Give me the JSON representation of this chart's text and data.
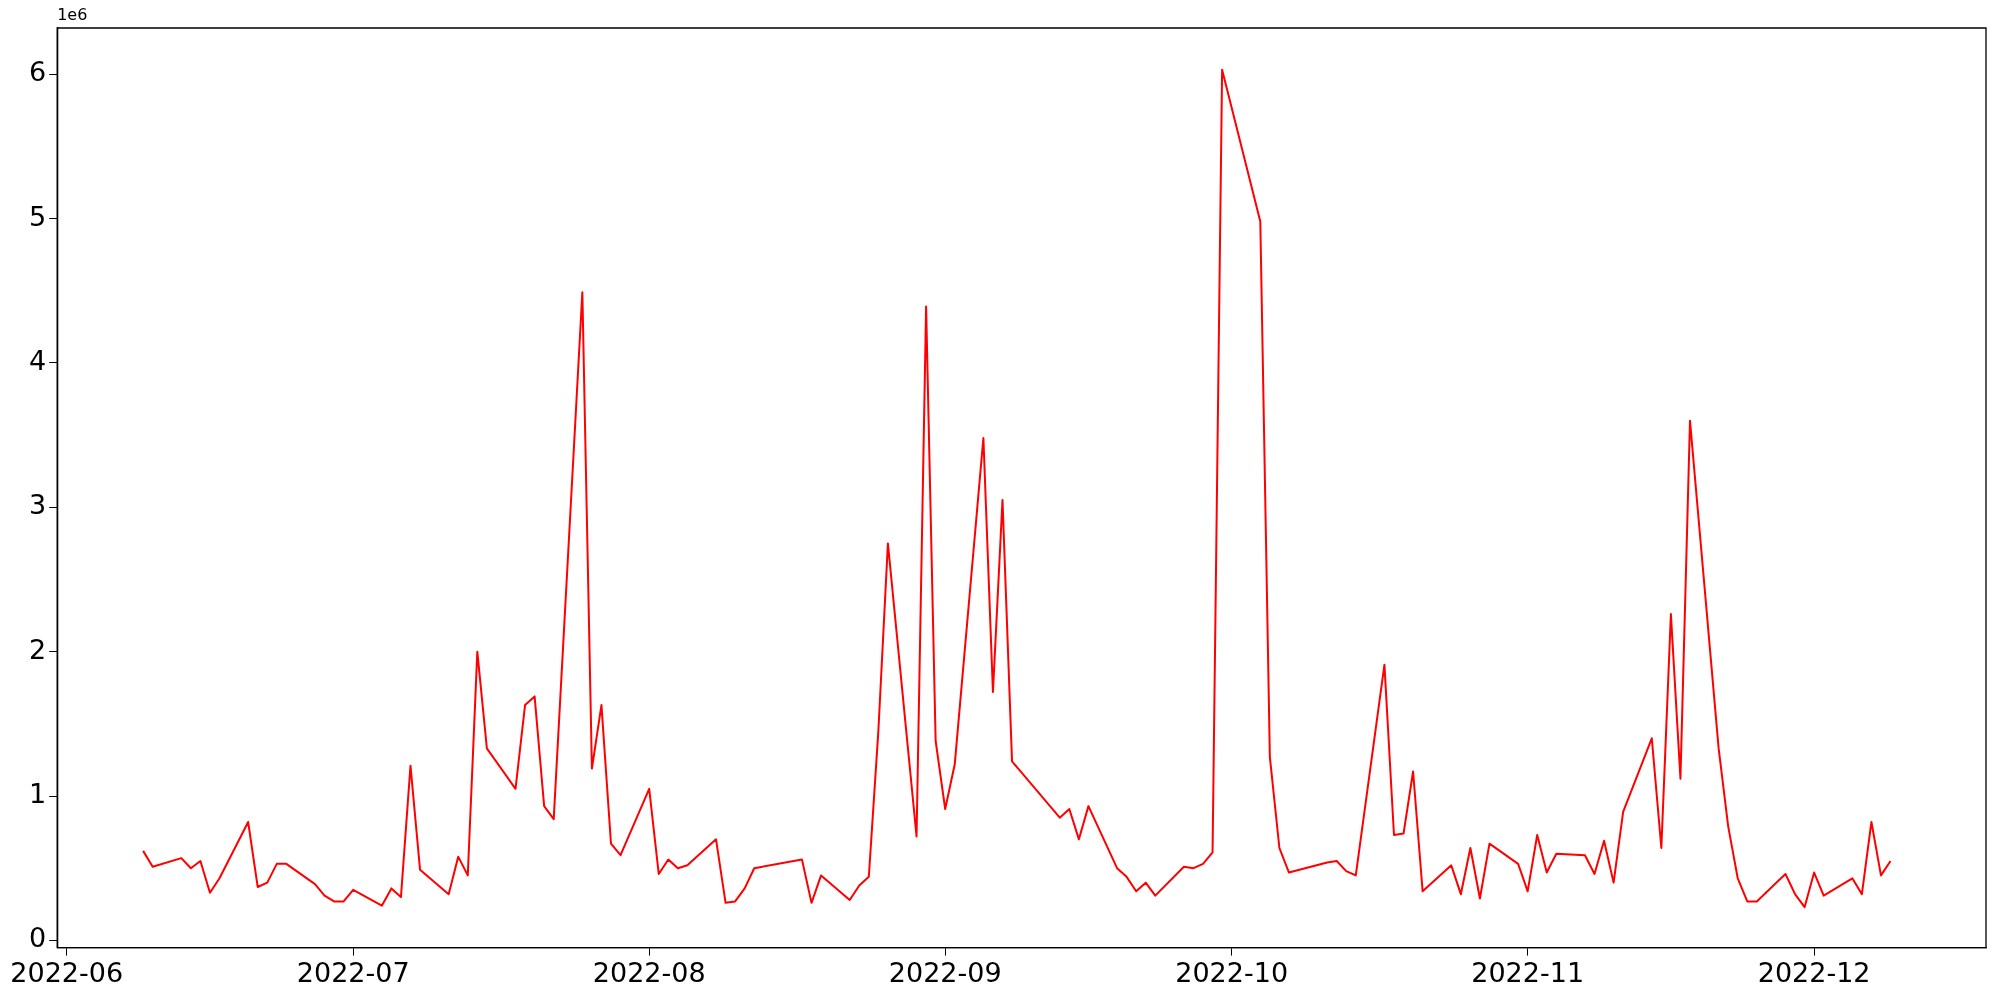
{
  "chart_data": {
    "type": "line",
    "x": [
      "2022-06-09",
      "2022-06-10",
      "2022-06-13",
      "2022-06-14",
      "2022-06-15",
      "2022-06-16",
      "2022-06-17",
      "2022-06-20",
      "2022-06-21",
      "2022-06-22",
      "2022-06-23",
      "2022-06-24",
      "2022-06-27",
      "2022-06-28",
      "2022-06-29",
      "2022-06-30",
      "2022-07-01",
      "2022-07-04",
      "2022-07-05",
      "2022-07-06",
      "2022-07-07",
      "2022-07-08",
      "2022-07-11",
      "2022-07-12",
      "2022-07-13",
      "2022-07-14",
      "2022-07-15",
      "2022-07-18",
      "2022-07-19",
      "2022-07-20",
      "2022-07-21",
      "2022-07-22",
      "2022-07-25",
      "2022-07-26",
      "2022-07-27",
      "2022-07-28",
      "2022-07-29",
      "2022-08-01",
      "2022-08-02",
      "2022-08-03",
      "2022-08-04",
      "2022-08-05",
      "2022-08-08",
      "2022-08-09",
      "2022-08-10",
      "2022-08-11",
      "2022-08-12",
      "2022-08-17",
      "2022-08-18",
      "2022-08-19",
      "2022-08-22",
      "2022-08-23",
      "2022-08-24",
      "2022-08-25",
      "2022-08-26",
      "2022-08-29",
      "2022-08-30",
      "2022-08-31",
      "2022-09-01",
      "2022-09-02",
      "2022-09-05",
      "2022-09-06",
      "2022-09-07",
      "2022-09-08",
      "2022-09-13",
      "2022-09-14",
      "2022-09-15",
      "2022-09-16",
      "2022-09-19",
      "2022-09-20",
      "2022-09-21",
      "2022-09-22",
      "2022-09-23",
      "2022-09-26",
      "2022-09-27",
      "2022-09-28",
      "2022-09-29",
      "2022-09-30",
      "2022-10-04",
      "2022-10-05",
      "2022-10-06",
      "2022-10-07",
      "2022-10-11",
      "2022-10-12",
      "2022-10-13",
      "2022-10-14",
      "2022-10-17",
      "2022-10-18",
      "2022-10-19",
      "2022-10-20",
      "2022-10-21",
      "2022-10-24",
      "2022-10-25",
      "2022-10-26",
      "2022-10-27",
      "2022-10-28",
      "2022-10-31",
      "2022-11-01",
      "2022-11-02",
      "2022-11-03",
      "2022-11-04",
      "2022-11-07",
      "2022-11-08",
      "2022-11-09",
      "2022-11-10",
      "2022-11-11",
      "2022-11-14",
      "2022-11-15",
      "2022-11-16",
      "2022-11-17",
      "2022-11-18",
      "2022-11-21",
      "2022-11-22",
      "2022-11-23",
      "2022-11-24",
      "2022-11-25",
      "2022-11-28",
      "2022-11-29",
      "2022-11-30",
      "2022-12-01",
      "2022-12-02",
      "2022-12-05",
      "2022-12-06",
      "2022-12-07",
      "2022-12-08",
      "2022-12-09"
    ],
    "series": [
      {
        "color": "#ff0000",
        "values": [
          0.62,
          0.51,
          0.57,
          0.5,
          0.55,
          0.33,
          0.43,
          0.82,
          0.37,
          0.4,
          0.53,
          0.53,
          0.39,
          0.31,
          0.27,
          0.27,
          0.35,
          0.24,
          0.36,
          0.3,
          1.21,
          0.49,
          0.32,
          0.58,
          0.45,
          2.0,
          1.33,
          1.05,
          1.63,
          1.69,
          0.93,
          0.84,
          4.49,
          1.19,
          1.63,
          0.67,
          0.59,
          1.05,
          0.46,
          0.56,
          0.5,
          0.52,
          0.7,
          0.26,
          0.27,
          0.36,
          0.5,
          0.56,
          0.26,
          0.45,
          0.28,
          0.38,
          0.44,
          1.45,
          2.75,
          0.72,
          4.39,
          1.38,
          0.91,
          1.22,
          3.48,
          1.72,
          3.05,
          1.24,
          0.85,
          0.91,
          0.7,
          0.93,
          0.5,
          0.44,
          0.34,
          0.4,
          0.31,
          0.51,
          0.5,
          0.53,
          0.61,
          6.03,
          4.98,
          1.27,
          0.64,
          0.47,
          0.54,
          0.55,
          0.48,
          0.45,
          1.91,
          0.73,
          0.74,
          1.17,
          0.34,
          0.52,
          0.32,
          0.64,
          0.29,
          0.67,
          0.53,
          0.34,
          0.73,
          0.47,
          0.6,
          0.59,
          0.46,
          0.69,
          0.4,
          0.89,
          1.4,
          0.64,
          2.26,
          1.12,
          3.6,
          1.33,
          0.79,
          0.43,
          0.27,
          0.27,
          0.46,
          0.32,
          0.23,
          0.47,
          0.31,
          0.43,
          0.32,
          0.82,
          0.45,
          0.55
        ]
      }
    ],
    "xlim": [
      "2022-05-31",
      "2022-12-19"
    ],
    "xticks": [
      "2022-06",
      "2022-07",
      "2022-08",
      "2022-09",
      "2022-10",
      "2022-11",
      "2022-12"
    ],
    "ylim": [
      -0.05,
      6.32
    ],
    "yticks": [
      0,
      1,
      2,
      3,
      4,
      5,
      6
    ],
    "annotations": [
      "1e6"
    ],
    "grid": false,
    "legend": false,
    "marker": "none",
    "line_style": "solid"
  }
}
